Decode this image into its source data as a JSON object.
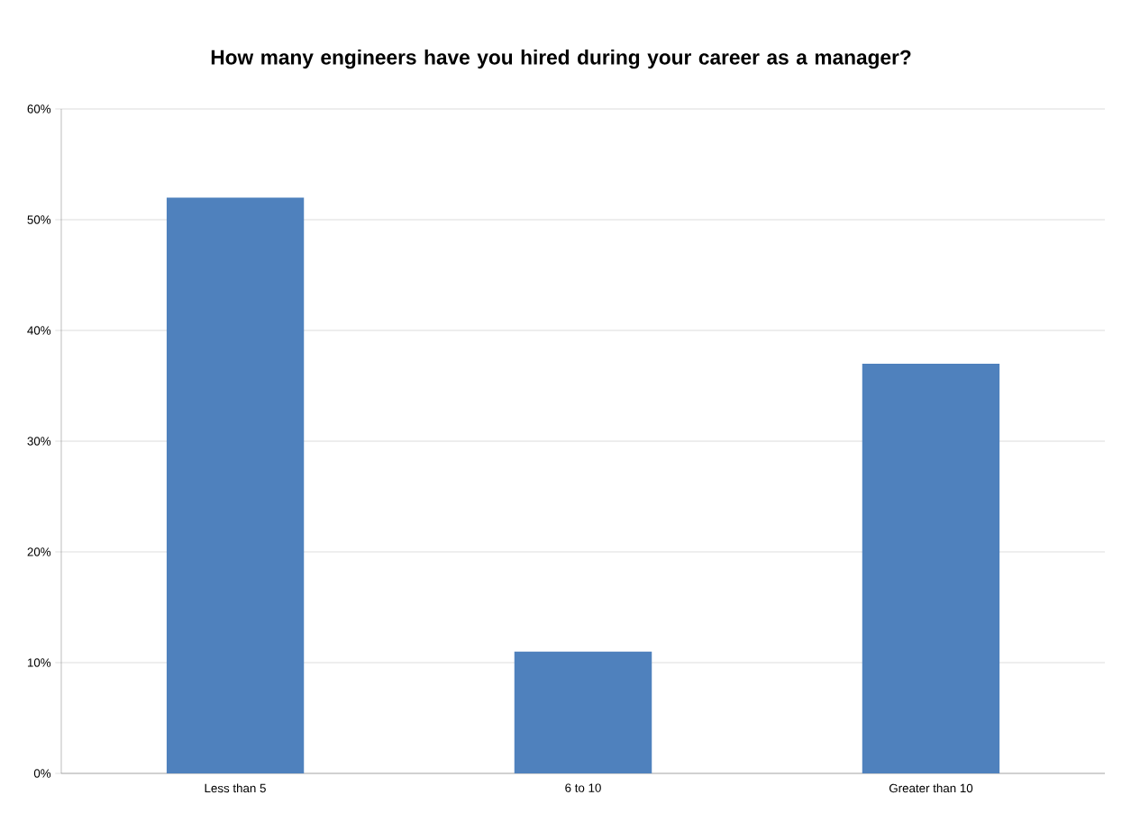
{
  "chart_data": {
    "type": "bar",
    "title": "How many engineers have you hired during your career as a manager?",
    "categories": [
      "Less than 5",
      "6 to 10",
      "Greater than 10"
    ],
    "values": [
      52,
      11,
      37
    ],
    "color": "#4f81bd",
    "ylim": [
      0,
      60
    ],
    "yticks": [
      {
        "value": 0,
        "label": "0%"
      },
      {
        "value": 10,
        "label": "10%"
      },
      {
        "value": 20,
        "label": "20%"
      },
      {
        "value": 30,
        "label": "30%"
      },
      {
        "value": 40,
        "label": "40%"
      },
      {
        "value": 50,
        "label": "50%"
      },
      {
        "value": 60,
        "label": "60%"
      }
    ],
    "grid": "y"
  }
}
